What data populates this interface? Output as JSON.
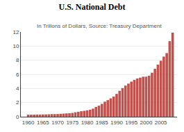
{
  "chart_data": {
    "type": "bar",
    "title": "U.S. National Debt",
    "subtitle": "In Trillons of Dollars, Source: Treasury Department",
    "x": [
      1960,
      1961,
      1962,
      1963,
      1964,
      1965,
      1966,
      1967,
      1968,
      1969,
      1970,
      1971,
      1972,
      1973,
      1974,
      1975,
      1976,
      1977,
      1978,
      1979,
      1980,
      1981,
      1982,
      1983,
      1984,
      1985,
      1986,
      1987,
      1988,
      1989,
      1990,
      1991,
      1992,
      1993,
      1994,
      1995,
      1996,
      1997,
      1998,
      1999,
      2000,
      2001,
      2002,
      2003,
      2004,
      2005,
      2006,
      2007,
      2008,
      2009
    ],
    "values": [
      0.29,
      0.29,
      0.3,
      0.31,
      0.31,
      0.32,
      0.33,
      0.34,
      0.37,
      0.37,
      0.38,
      0.41,
      0.44,
      0.47,
      0.49,
      0.54,
      0.63,
      0.7,
      0.78,
      0.83,
      0.91,
      0.99,
      1.14,
      1.38,
      1.57,
      1.82,
      2.13,
      2.35,
      2.6,
      2.86,
      3.23,
      3.67,
      4.06,
      4.41,
      4.69,
      4.97,
      5.22,
      5.41,
      5.53,
      5.66,
      5.67,
      5.81,
      6.23,
      6.78,
      7.38,
      7.93,
      8.51,
      9.01,
      10.7,
      11.9
    ],
    "color": "#c0514d",
    "xlim": [
      1957.5,
      2010.5
    ],
    "xticks": [
      1960,
      1965,
      1970,
      1975,
      1980,
      1985,
      1990,
      1995,
      2000,
      2005
    ],
    "ylim": [
      0,
      12
    ],
    "yticks": [
      0,
      2,
      4,
      6,
      8,
      10,
      12
    ],
    "grid": true
  }
}
